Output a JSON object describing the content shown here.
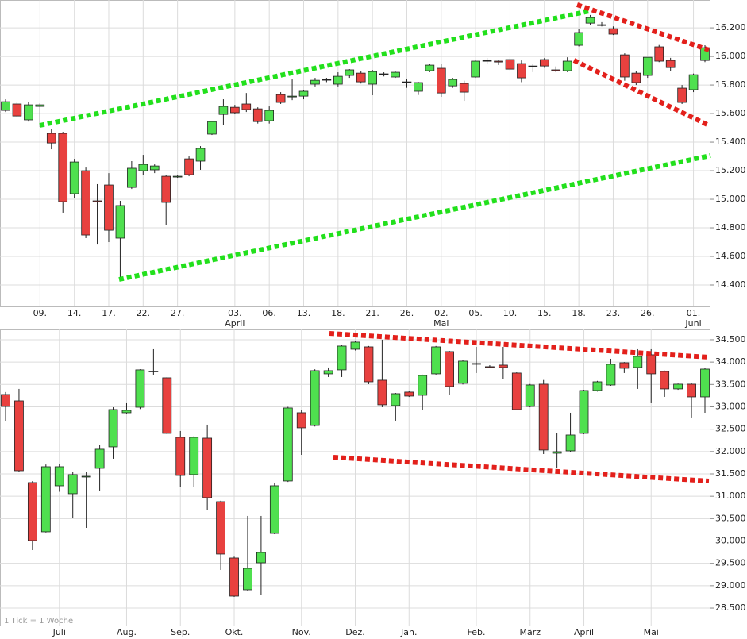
{
  "chart_data": [
    {
      "type": "candlestick",
      "categories": [
        null,
        null,
        null,
        "09.",
        null,
        null,
        "14.",
        null,
        null,
        "17.",
        null,
        null,
        "22.",
        null,
        null,
        "27.",
        null,
        null,
        null,
        null,
        "03.",
        null,
        null,
        "06.",
        null,
        null,
        "13.",
        null,
        null,
        "18.",
        null,
        null,
        "21.",
        null,
        null,
        "26.",
        null,
        null,
        "02.",
        null,
        null,
        "05.",
        null,
        null,
        "10.",
        null,
        null,
        "15.",
        null,
        null,
        "18.",
        null,
        null,
        "23.",
        null,
        null,
        "26.",
        null,
        null,
        null,
        "01.",
        null
      ],
      "month_labels": [
        null,
        null,
        null,
        null,
        null,
        null,
        null,
        null,
        null,
        null,
        null,
        null,
        null,
        null,
        null,
        null,
        null,
        null,
        null,
        null,
        "April",
        null,
        null,
        null,
        null,
        null,
        null,
        null,
        null,
        null,
        null,
        null,
        null,
        null,
        null,
        null,
        null,
        null,
        "Mai",
        null,
        null,
        null,
        null,
        null,
        null,
        null,
        null,
        null,
        null,
        null,
        null,
        null,
        null,
        null,
        null,
        null,
        null,
        null,
        null,
        null,
        "Juni",
        null
      ],
      "open": [
        15622,
        15667,
        15556,
        15650,
        15461,
        15461,
        15039,
        15200,
        14989,
        15100,
        14728,
        15083,
        15200,
        15206,
        15161,
        15156,
        15283,
        15267,
        15456,
        15594,
        15644,
        15667,
        15633,
        15550,
        15733,
        15717,
        15722,
        15806,
        15839,
        15806,
        15867,
        15883,
        15806,
        15878,
        15856,
        15822,
        15756,
        15900,
        15917,
        15794,
        15811,
        15856,
        15972,
        15967,
        15978,
        15950,
        15933,
        15978,
        15906,
        15900,
        16078,
        16233,
        16222,
        16194,
        16011,
        15883,
        15867,
        16067,
        15972,
        15778,
        15767,
        15972
      ],
      "high": [
        15700,
        15678,
        15683,
        15672,
        15489,
        15472,
        15283,
        15222,
        15106,
        15183,
        14989,
        15267,
        15311,
        15244,
        15172,
        15172,
        15300,
        15372,
        15550,
        15700,
        15661,
        15744,
        15644,
        15650,
        15750,
        15839,
        15767,
        15850,
        15850,
        15889,
        15911,
        15900,
        15906,
        15889,
        15894,
        15839,
        15822,
        15950,
        15950,
        15850,
        15830,
        15972,
        15989,
        15978,
        15994,
        15972,
        15950,
        15989,
        15930,
        15994,
        16194,
        16290,
        16240,
        16210,
        16022,
        15900,
        15994,
        16080,
        15990,
        15800,
        15880,
        16078
      ],
      "low": [
        15611,
        15572,
        15544,
        15506,
        15350,
        14906,
        15006,
        14728,
        14683,
        14700,
        14428,
        15072,
        15172,
        15183,
        14822,
        15150,
        15161,
        15206,
        15450,
        15522,
        15600,
        15611,
        15530,
        15530,
        15667,
        15694,
        15700,
        15790,
        15820,
        15790,
        15850,
        15810,
        15728,
        15860,
        15850,
        15780,
        15730,
        15890,
        15717,
        15780,
        15689,
        15850,
        15950,
        15940,
        15900,
        15820,
        15890,
        15920,
        15890,
        15890,
        16070,
        16220,
        16210,
        16150,
        15830,
        15800,
        15850,
        15960,
        15900,
        15667,
        15750,
        15960
      ],
      "close": [
        15683,
        15583,
        15661,
        15661,
        15394,
        14983,
        15261,
        14750,
        14983,
        14783,
        14956,
        15217,
        15244,
        15233,
        14978,
        15161,
        15172,
        15356,
        15544,
        15650,
        15606,
        15628,
        15544,
        15622,
        15678,
        15722,
        15756,
        15833,
        15839,
        15861,
        15906,
        15822,
        15894,
        15878,
        15889,
        15822,
        15817,
        15939,
        15744,
        15839,
        15750,
        15967,
        15972,
        15961,
        15911,
        15850,
        15933,
        15933,
        15900,
        15967,
        16167,
        16272,
        16222,
        16156,
        15856,
        15817,
        15994,
        15967,
        15922,
        15678,
        15872,
        16061
      ],
      "up_color": "#4fe04f",
      "down_color": "#e8413f",
      "ylim": [
        14250,
        16395
      ],
      "yticks": [
        {
          "value": 14400,
          "label": "14.400"
        },
        {
          "value": 14600,
          "label": "14.600"
        },
        {
          "value": 14800,
          "label": "14.800"
        },
        {
          "value": 15000,
          "label": "15.000"
        },
        {
          "value": 15200,
          "label": "15.200"
        },
        {
          "value": 15400,
          "label": "15.400"
        },
        {
          "value": 15600,
          "label": "15.600"
        },
        {
          "value": 15800,
          "label": "15.800"
        },
        {
          "value": 16000,
          "label": "16.000"
        },
        {
          "value": 16200,
          "label": "16.200"
        }
      ],
      "grid": true
    },
    {
      "type": "candlestick",
      "categories": [
        null,
        null,
        null,
        null,
        "Juli",
        null,
        null,
        null,
        null,
        "Aug.",
        null,
        null,
        null,
        "Sep.",
        null,
        null,
        null,
        "Okt.",
        null,
        null,
        null,
        null,
        "Nov.",
        null,
        null,
        null,
        "Dez.",
        null,
        null,
        null,
        "Jan.",
        null,
        null,
        null,
        null,
        "Feb.",
        null,
        null,
        null,
        "März",
        null,
        null,
        null,
        "April",
        null,
        null,
        null,
        null,
        "Mai",
        null,
        null,
        null,
        null
      ],
      "open": [
        33275,
        33133,
        31305,
        30205,
        31234,
        31057,
        31430,
        31625,
        32104,
        32867,
        32991,
        33790,
        33648,
        32317,
        31483,
        32299,
        30879,
        29619,
        28909,
        29512,
        30169,
        31341,
        32867,
        32583,
        33737,
        33826,
        34287,
        34340,
        33595,
        33027,
        33329,
        33258,
        33737,
        34234,
        33524,
        33960,
        33897,
        33932,
        33755,
        33009,
        33506,
        31962,
        32015,
        32406,
        33364,
        33488,
        33985,
        33879,
        34163,
        33790,
        33400,
        33506,
        33222
      ],
      "high": [
        33330,
        33400,
        31340,
        31710,
        31720,
        31540,
        31540,
        32150,
        32990,
        33080,
        33840,
        34287,
        33660,
        32459,
        32340,
        32601,
        30900,
        29650,
        30560,
        30560,
        31305,
        33000,
        32920,
        33840,
        33879,
        34380,
        34470,
        34360,
        34500,
        33310,
        33350,
        33720,
        34360,
        34250,
        34040,
        34340,
        33930,
        34340,
        33770,
        33510,
        33600,
        32423,
        32867,
        33380,
        33580,
        34074,
        34000,
        34287,
        34287,
        33810,
        33520,
        33530,
        33860
      ],
      "low": [
        32690,
        31536,
        29796,
        30190,
        31100,
        30506,
        30293,
        31128,
        31838,
        32850,
        32950,
        33719,
        32390,
        31216,
        31216,
        30684,
        29353,
        28750,
        28874,
        28786,
        30151,
        31320,
        31926,
        32560,
        33666,
        33666,
        34260,
        33506,
        32991,
        32690,
        33220,
        32920,
        33720,
        33275,
        33500,
        33755,
        33870,
        33613,
        32920,
        32990,
        31944,
        31625,
        31980,
        32390,
        33340,
        33470,
        33755,
        33400,
        33080,
        33222,
        33380,
        32761,
        32867
      ],
      "close": [
        33009,
        31571,
        30009,
        31660,
        31660,
        31483,
        31447,
        32051,
        32938,
        32920,
        33826,
        33800,
        32406,
        31465,
        32317,
        30968,
        29708,
        28767,
        29388,
        29743,
        31234,
        32974,
        32530,
        33808,
        33808,
        34358,
        34447,
        33559,
        33045,
        33293,
        33240,
        33701,
        34340,
        33453,
        34021,
        33968,
        33890,
        33879,
        32938,
        33488,
        32033,
        31997,
        32370,
        33364,
        33559,
        33950,
        33861,
        34127,
        33737,
        33400,
        33506,
        33222,
        33843
      ],
      "up_color": "#4fe04f",
      "down_color": "#e8413f",
      "ylim": [
        28110,
        34730
      ],
      "yticks": [
        {
          "value": 28500,
          "label": "28.500"
        },
        {
          "value": 29000,
          "label": "29.000"
        },
        {
          "value": 29500,
          "label": "29.500"
        },
        {
          "value": 30000,
          "label": "30.000"
        },
        {
          "value": 30500,
          "label": "30.500"
        },
        {
          "value": 31000,
          "label": "31.000"
        },
        {
          "value": 31500,
          "label": "31.500"
        },
        {
          "value": 32000,
          "label": "32.000"
        },
        {
          "value": 32500,
          "label": "32.500"
        },
        {
          "value": 33000,
          "label": "33.000"
        },
        {
          "value": 33500,
          "label": "33.500"
        },
        {
          "value": 34000,
          "label": "34.000"
        },
        {
          "value": 34500,
          "label": "34.500"
        }
      ],
      "grid": true,
      "annotation": "1 Tick = 1 Woche"
    }
  ]
}
